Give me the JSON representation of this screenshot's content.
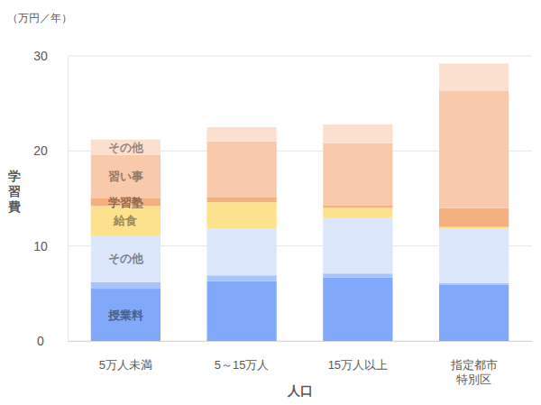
{
  "chart_data": {
    "type": "bar",
    "stacked": true,
    "subtitle": "（万円／年）",
    "x_label": "人口",
    "y_label": "学習費",
    "categories": [
      "5万人未満",
      "5～15万人",
      "15万人以上",
      "指定都市\n特別区"
    ],
    "ylim": [
      0,
      30
    ],
    "yticks": [
      0,
      10,
      20,
      30
    ],
    "grid": true,
    "series": [
      {
        "name": "授業料",
        "color": "#82a9f9",
        "values": [
          5.5,
          6.3,
          6.7,
          5.9
        ]
      },
      {
        "name": null,
        "color": "#a9c4fa",
        "values": [
          0.7,
          0.6,
          0.4,
          0.2
        ]
      },
      {
        "name": "その他",
        "color": "#dce7fc",
        "values": [
          4.9,
          4.9,
          5.9,
          5.7
        ]
      },
      {
        "name": "給食",
        "color": "#fde28e",
        "values": [
          3.1,
          2.8,
          1.0,
          0.2
        ]
      },
      {
        "name": "学習塾",
        "color": "#f4b07f",
        "values": [
          0.8,
          0.5,
          0.3,
          2.0
        ]
      },
      {
        "name": "習い事",
        "color": "#f8caab",
        "values": [
          4.6,
          5.9,
          6.5,
          12.3
        ]
      },
      {
        "name": "その他",
        "color": "#fce0cf",
        "values": [
          1.6,
          1.5,
          2.0,
          2.9
        ]
      }
    ]
  }
}
